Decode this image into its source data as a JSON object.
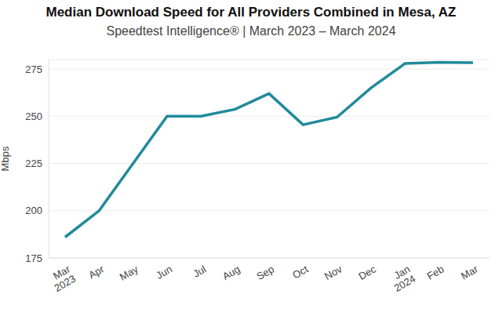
{
  "chart_data": {
    "type": "line",
    "title": "Median Download Speed for All Providers Combined in Mesa, AZ",
    "subtitle": "Speedtest Intelligence® | March 2023 – March 2024",
    "y_label": "Mbps",
    "categories": [
      "Mar 2023",
      "Apr",
      "May",
      "Jun",
      "Jul",
      "Aug",
      "Sep",
      "Oct",
      "Nov",
      "Dec",
      "Jan 2024",
      "Feb",
      "Mar"
    ],
    "values": [
      186,
      200,
      225,
      250,
      250,
      253.7,
      262,
      245.5,
      249.5,
      265,
      277.9,
      278.5,
      278.3
    ],
    "color": "#218a9b",
    "ylim": [
      175,
      280
    ],
    "yticks": [
      175,
      200,
      225,
      250,
      275
    ],
    "grid": true
  }
}
